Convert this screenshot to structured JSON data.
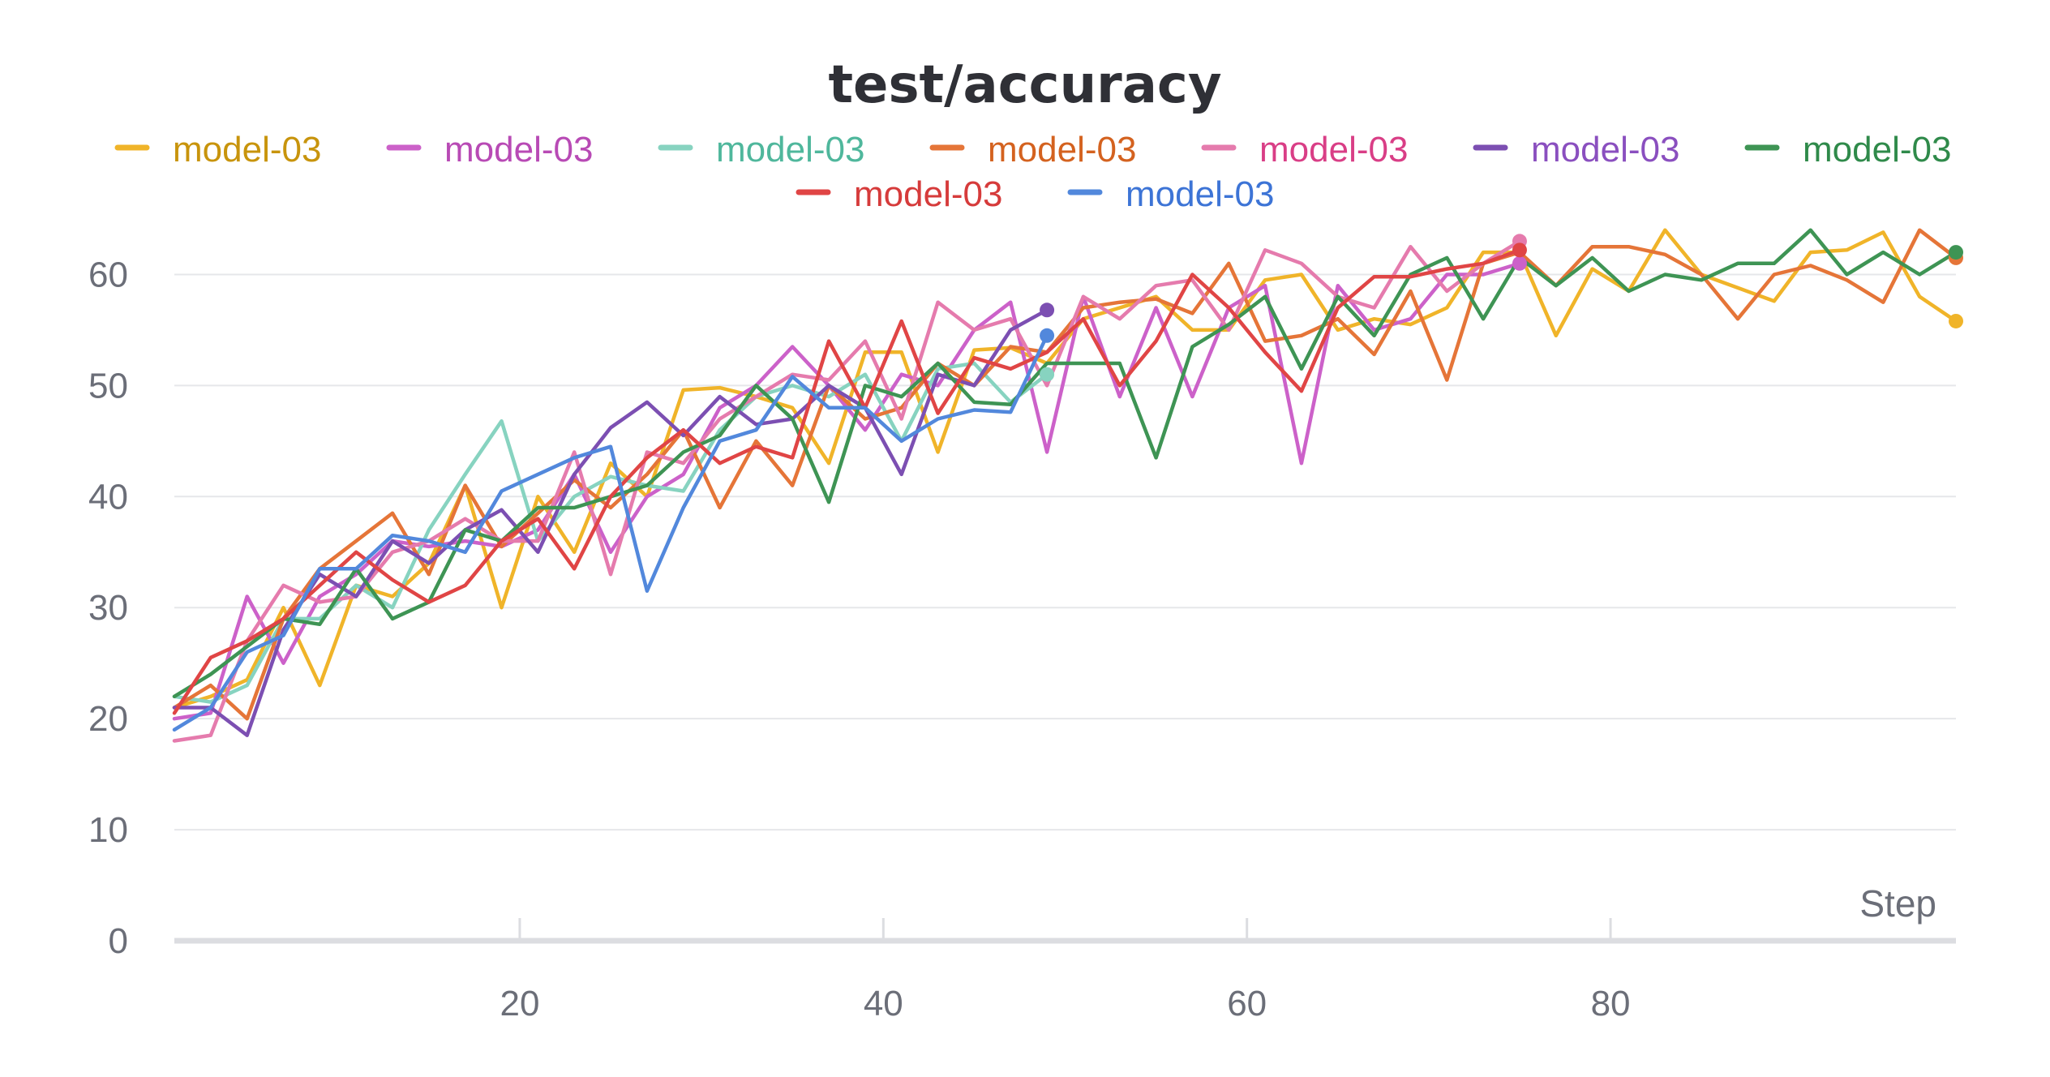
{
  "chart_data": {
    "type": "line",
    "title": "test/accuracy",
    "xlabel": "Step",
    "ylabel": "",
    "xlim": [
      1,
      99
    ],
    "ylim": [
      0,
      65
    ],
    "xticks": [
      20,
      40,
      60,
      80
    ],
    "yticks": [
      0,
      10,
      20,
      30,
      40,
      50,
      60
    ],
    "grid": true,
    "legend_position": "top",
    "series": [
      {
        "name": "model-03",
        "color": "#f0b429",
        "text_color": "#c8940c",
        "x": [
          1,
          3,
          5,
          7,
          9,
          11,
          13,
          15,
          17,
          19,
          21,
          23,
          25,
          27,
          29,
          31,
          33,
          35,
          37,
          39,
          41,
          43,
          45,
          47,
          49,
          51,
          53,
          55,
          57,
          59,
          61,
          63,
          65,
          67,
          69,
          71,
          73,
          75,
          77,
          79,
          81,
          83,
          85,
          87,
          89,
          91,
          93,
          95,
          97,
          99
        ],
        "y": [
          21,
          22,
          23.5,
          30,
          23,
          32,
          31,
          34,
          41,
          30,
          40,
          35,
          43,
          40,
          49.6,
          49.8,
          49,
          48,
          43,
          53,
          53,
          44,
          53.2,
          53.4,
          52,
          56,
          57,
          58,
          55,
          55,
          59.5,
          60,
          55,
          56,
          55.5,
          57,
          62,
          62,
          54.5,
          60.5,
          58.5,
          64,
          60,
          58.8,
          57.6,
          62,
          62.2,
          63.8,
          58,
          55.8
        ]
      },
      {
        "name": "model-03",
        "color": "#cc61c9",
        "text_color": "#b84ab5",
        "x": [
          1,
          3,
          5,
          7,
          9,
          11,
          13,
          15,
          17,
          19,
          21,
          23,
          25,
          27,
          29,
          31,
          33,
          35,
          37,
          39,
          41,
          43,
          45,
          47,
          49,
          51,
          53,
          55,
          57,
          59,
          61,
          63,
          65,
          67,
          69,
          71,
          73,
          75
        ],
        "y": [
          20,
          20.5,
          31,
          25,
          31,
          33,
          36,
          35.5,
          36,
          35.5,
          37,
          42,
          35,
          40,
          42,
          48,
          50,
          53.5,
          50,
          46,
          51,
          50,
          55,
          57.5,
          44,
          58,
          49,
          57,
          49,
          57,
          59,
          43,
          59,
          55,
          56,
          60,
          60,
          61
        ]
      },
      {
        "name": "model-03",
        "color": "#87d3c0",
        "text_color": "#4fb79c",
        "x": [
          1,
          3,
          5,
          7,
          9,
          11,
          13,
          15,
          17,
          19,
          21,
          23,
          25,
          27,
          29,
          31,
          33,
          35,
          37,
          39,
          41,
          43,
          45,
          47,
          49
        ],
        "y": [
          22,
          21.5,
          23,
          29,
          29,
          32,
          30,
          37,
          42,
          46.8,
          36,
          40,
          41.8,
          41,
          40.5,
          46,
          49,
          50,
          49,
          51,
          45,
          51.5,
          52,
          48.5,
          51
        ]
      },
      {
        "name": "model-03",
        "color": "#e57538",
        "text_color": "#d4621f",
        "x": [
          1,
          3,
          5,
          7,
          9,
          11,
          13,
          15,
          17,
          19,
          21,
          23,
          25,
          27,
          29,
          31,
          33,
          35,
          37,
          39,
          41,
          43,
          45,
          47,
          49,
          51,
          53,
          55,
          57,
          59,
          61,
          63,
          65,
          67,
          69,
          71,
          73,
          75,
          77,
          79,
          81,
          83,
          85,
          87,
          89,
          91,
          93,
          95,
          97,
          99
        ],
        "y": [
          21,
          23,
          20,
          29,
          33.5,
          36,
          38.5,
          33,
          41,
          35.5,
          38.5,
          41.5,
          39,
          42,
          46,
          39,
          45,
          41,
          50,
          47,
          48,
          52,
          50,
          53.5,
          53,
          57,
          57.5,
          57.8,
          56.5,
          61,
          54,
          54.5,
          56,
          52.8,
          58.5,
          50.5,
          61,
          62,
          59,
          62.5,
          62.5,
          61.8,
          60,
          56,
          60,
          60.8,
          59.5,
          57.5,
          64,
          61.5
        ]
      },
      {
        "name": "model-03",
        "color": "#e57bad",
        "text_color": "#d93e86",
        "x": [
          1,
          3,
          5,
          7,
          9,
          11,
          13,
          15,
          17,
          19,
          21,
          23,
          25,
          27,
          29,
          31,
          33,
          35,
          37,
          39,
          41,
          43,
          45,
          47,
          49,
          51,
          53,
          55,
          57,
          59,
          61,
          63,
          65,
          67,
          69,
          71,
          73,
          75
        ],
        "y": [
          18,
          18.5,
          27,
          32,
          30.5,
          31,
          35,
          36,
          38,
          36,
          36,
          44,
          33,
          44,
          43,
          47,
          49,
          51,
          50.5,
          54,
          47,
          57.5,
          55,
          56,
          50,
          58,
          56,
          59,
          59.5,
          55,
          62.2,
          61,
          58,
          57,
          62.5,
          58.5,
          61,
          63
        ]
      },
      {
        "name": "model-03",
        "color": "#7c4fb2",
        "text_color": "#8a4fbf",
        "x": [
          1,
          3,
          5,
          7,
          9,
          11,
          13,
          15,
          17,
          19,
          21,
          23,
          25,
          27,
          29,
          31,
          33,
          35,
          37,
          39,
          41,
          43,
          45,
          47,
          49
        ],
        "y": [
          21,
          21,
          18.5,
          28,
          33,
          31,
          36,
          34,
          37,
          38.8,
          35,
          42,
          46.2,
          48.5,
          45.5,
          49,
          46.5,
          47,
          50,
          48,
          42,
          51,
          50,
          55,
          56.8
        ]
      },
      {
        "name": "model-03",
        "color": "#3e9454",
        "text_color": "#2f8a4a",
        "x": [
          1,
          3,
          5,
          7,
          9,
          11,
          13,
          15,
          17,
          19,
          21,
          23,
          25,
          27,
          29,
          31,
          33,
          35,
          37,
          39,
          41,
          43,
          45,
          47,
          49,
          51,
          53,
          55,
          57,
          59,
          61,
          63,
          65,
          67,
          69,
          71,
          73,
          75,
          77,
          79,
          81,
          83,
          85,
          87,
          89,
          91,
          93,
          95,
          97,
          99
        ],
        "y": [
          22,
          24,
          26.5,
          29,
          28.5,
          33.5,
          29,
          30.5,
          37,
          36,
          39,
          39,
          40,
          41,
          44,
          45.5,
          50,
          47,
          39.5,
          50,
          49,
          52,
          48.5,
          48.3,
          52,
          52,
          52,
          43.5,
          53.5,
          55.5,
          58,
          51.5,
          58,
          54.5,
          60,
          61.5,
          56,
          61.5,
          59,
          61.5,
          58.5,
          60,
          59.5,
          61,
          61,
          64,
          60,
          62,
          60,
          62
        ]
      },
      {
        "name": "model-03",
        "color": "#e04545",
        "text_color": "#d63b3b",
        "x": [
          1,
          3,
          5,
          7,
          9,
          11,
          13,
          15,
          17,
          19,
          21,
          23,
          25,
          27,
          29,
          31,
          33,
          35,
          37,
          39,
          41,
          43,
          45,
          47,
          49,
          51,
          53,
          55,
          57,
          59,
          61,
          63,
          65,
          67,
          69,
          71,
          73,
          75
        ],
        "y": [
          20.5,
          25.5,
          27,
          29,
          32,
          35,
          32.5,
          30.5,
          32,
          36,
          38,
          33.5,
          40,
          43.5,
          46,
          43,
          44.5,
          43.5,
          54,
          48,
          55.8,
          47.5,
          52.5,
          51.5,
          53,
          56,
          50,
          54,
          60,
          57,
          53,
          49.5,
          57,
          59.8,
          59.8,
          60.5,
          61,
          62.2
        ]
      },
      {
        "name": "model-03",
        "color": "#5288dc",
        "text_color": "#3d74d6",
        "x": [
          1,
          3,
          5,
          7,
          9,
          11,
          13,
          15,
          17,
          19,
          21,
          23,
          25,
          27,
          29,
          31,
          33,
          35,
          37,
          39,
          41,
          43,
          45,
          47,
          49
        ],
        "y": [
          19,
          21,
          26,
          27.5,
          33.5,
          33.5,
          36.5,
          36,
          35,
          40.5,
          42,
          43.5,
          44.5,
          31.5,
          39,
          45,
          46,
          50.8,
          48,
          48,
          45,
          47,
          47.8,
          47.6,
          54.5
        ]
      }
    ]
  }
}
